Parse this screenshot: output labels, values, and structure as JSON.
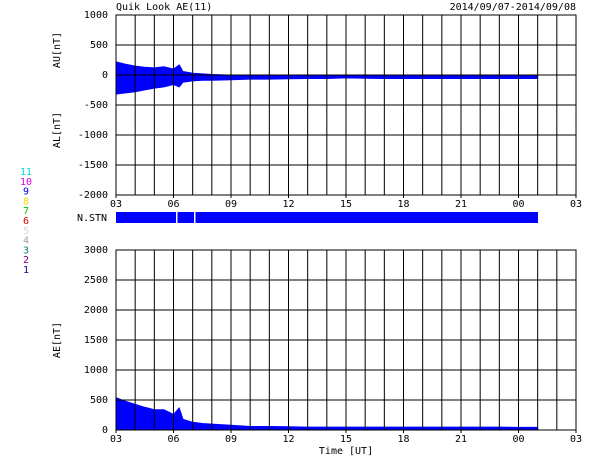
{
  "header": {
    "title": "Quik Look AE(11)",
    "date_range": "2014/09/07-2014/09/08",
    "nstn_label": "N.STN"
  },
  "stations": [
    {
      "label": "11",
      "color": "#00d8d8"
    },
    {
      "label": "10",
      "color": "#e000e0"
    },
    {
      "label": "9",
      "color": "#0000e0"
    },
    {
      "label": "8",
      "color": "#e8e000"
    },
    {
      "label": "7",
      "color": "#00c000"
    },
    {
      "label": "6",
      "color": "#e00000"
    },
    {
      "label": "5",
      "color": "#d8d8d8"
    },
    {
      "label": "4",
      "color": "#a0a0a0"
    },
    {
      "label": "3",
      "color": "#008080"
    },
    {
      "label": "2",
      "color": "#800080"
    },
    {
      "label": "1",
      "color": "#000090"
    }
  ],
  "chart_data": [
    {
      "type": "area",
      "ylabels": [
        "AU[nT]",
        "AL[nT]"
      ],
      "x": [
        3,
        3.5,
        4,
        4.5,
        5,
        5.5,
        6,
        6.3,
        6.5,
        7,
        7.5,
        8,
        9,
        10,
        11,
        12,
        13,
        14,
        15,
        16,
        17,
        18,
        19,
        20,
        21,
        22,
        23,
        24,
        25
      ],
      "series": [
        {
          "name": "AU",
          "color": "#0000ff",
          "values": [
            220,
            180,
            150,
            130,
            120,
            140,
            100,
            170,
            60,
            30,
            20,
            10,
            0,
            -10,
            -10,
            -10,
            -10,
            -10,
            0,
            -5,
            -10,
            -10,
            -10,
            -10,
            -10,
            -10,
            -10,
            -15,
            -15
          ]
        },
        {
          "name": "AL",
          "color": "#0000ff",
          "values": [
            -320,
            -300,
            -280,
            -250,
            -220,
            -200,
            -160,
            -200,
            -120,
            -100,
            -90,
            -90,
            -80,
            -70,
            -70,
            -65,
            -60,
            -60,
            -50,
            -55,
            -60,
            -60,
            -60,
            -60,
            -60,
            -60,
            -60,
            -60,
            -60
          ]
        }
      ],
      "xlim": [
        3,
        27
      ],
      "xticks": [
        {
          "value": 3,
          "label": "03"
        },
        {
          "value": 6,
          "label": "06"
        },
        {
          "value": 9,
          "label": "09"
        },
        12,
        15,
        18,
        21,
        {
          "value": 24,
          "label": "00"
        },
        {
          "value": 27,
          "label": "03"
        }
      ],
      "ylim": [
        -2000,
        1000
      ],
      "yticks": [
        -2000,
        -1500,
        -1000,
        -500,
        0,
        500,
        1000
      ],
      "grid": true
    },
    {
      "type": "area",
      "ylabels": [
        "AE[nT]"
      ],
      "xlabel": "Time [UT]",
      "x": [
        3,
        3.5,
        4,
        4.5,
        5,
        5.5,
        6,
        6.3,
        6.5,
        7,
        7.5,
        8,
        9,
        10,
        11,
        12,
        13,
        14,
        15,
        16,
        17,
        18,
        19,
        20,
        21,
        22,
        23,
        24,
        25
      ],
      "series": [
        {
          "name": "AE",
          "color": "#0000ff",
          "values": [
            540,
            480,
            430,
            380,
            340,
            340,
            260,
            370,
            180,
            130,
            110,
            100,
            80,
            60,
            60,
            55,
            50,
            50,
            50,
            50,
            50,
            50,
            50,
            50,
            50,
            50,
            50,
            45,
            45
          ]
        }
      ],
      "xlim": [
        3,
        27
      ],
      "xticks": [
        {
          "value": 3,
          "label": "03"
        },
        {
          "value": 6,
          "label": "06"
        },
        {
          "value": 9,
          "label": "09"
        },
        12,
        15,
        18,
        21,
        {
          "value": 24,
          "label": "00"
        },
        {
          "value": 27,
          "label": "03"
        }
      ],
      "ylim": [
        0,
        3000
      ],
      "yticks": [
        0,
        500,
        1000,
        1500,
        2000,
        2500,
        3000
      ],
      "grid": true
    }
  ]
}
